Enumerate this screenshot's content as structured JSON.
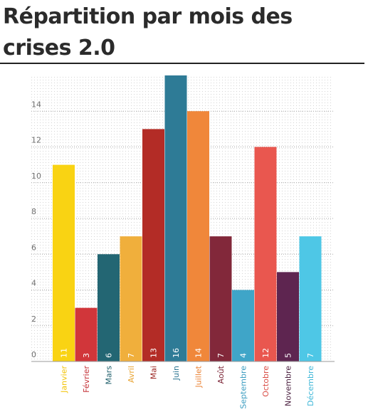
{
  "title": "Répartition par mois des crises 2.0",
  "chart_data": {
    "type": "bar",
    "title": "Répartition par mois des crises 2.0",
    "categories": [
      "Janvier",
      "Février",
      "Mars",
      "Avril",
      "Mai",
      "Juin",
      "Juillet",
      "Août",
      "Septembre",
      "Octobre",
      "Novembre",
      "Décembre"
    ],
    "values": [
      11,
      3,
      6,
      7,
      13,
      16,
      14,
      7,
      4,
      12,
      5,
      7
    ],
    "colors": [
      "#f9d313",
      "#d1363a",
      "#236673",
      "#f0af3c",
      "#b32c26",
      "#2e7b96",
      "#f0873a",
      "#82283a",
      "#3fa5c8",
      "#e9574f",
      "#5e2550",
      "#4ec7e6"
    ],
    "label_colors": [
      "#f2c200",
      "#c42f35",
      "#1f5f6b",
      "#e8a22e",
      "#9c2522",
      "#2a7491",
      "#ea7f2f",
      "#7a2234",
      "#3a9cc0",
      "#d94c44",
      "#4b2040",
      "#3fb7d8"
    ],
    "yticks": [
      0,
      2,
      4,
      6,
      8,
      10,
      12,
      14
    ],
    "ylim": [
      0,
      16
    ],
    "xlabel": "",
    "ylabel": "",
    "grid": true,
    "legend": "none"
  }
}
